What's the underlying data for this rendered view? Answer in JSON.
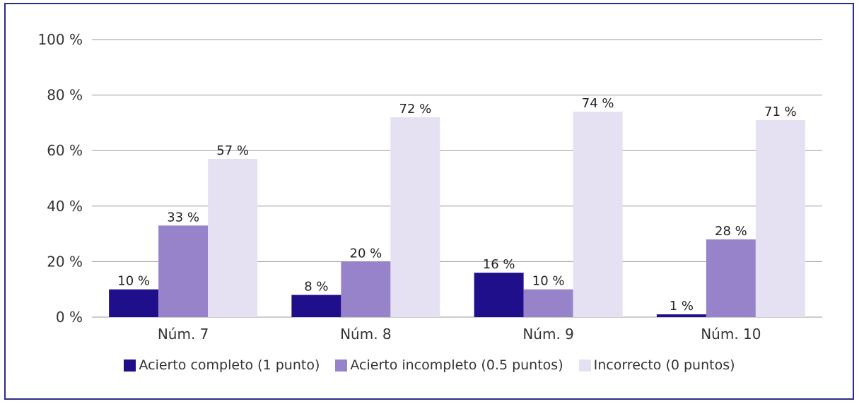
{
  "chart_data": {
    "type": "bar",
    "categories": [
      "Núm. 7",
      "Núm. 8",
      "Núm. 9",
      "Núm. 10"
    ],
    "series": [
      {
        "name": "Acierto completo (1 punto)",
        "values": [
          10,
          8,
          16,
          1
        ],
        "labels": [
          "10 %",
          "8 %",
          "16 %",
          "1 %"
        ],
        "color": "#1f0f8a"
      },
      {
        "name": "Acierto incompleto (0.5 puntos)",
        "values": [
          33,
          20,
          10,
          28
        ],
        "labels": [
          "33 %",
          "20 %",
          "10 %",
          "28 %"
        ],
        "color": "#9683c9"
      },
      {
        "name": "Incorrecto (0 puntos)",
        "values": [
          57,
          72,
          74,
          71
        ],
        "labels": [
          "57 %",
          "72 %",
          "74 %",
          "71 %"
        ],
        "color": "#e6e1f2"
      }
    ],
    "yticks": [
      "0 %",
      "20 %",
      "40 %",
      "60 %",
      "80 %",
      "100 %"
    ],
    "ylim": [
      0,
      100
    ],
    "grid": true,
    "legend_position": "bottom",
    "title": "",
    "xlabel": "",
    "ylabel": ""
  },
  "colors": {
    "border": "#2d2d86",
    "gridline": "#999999"
  }
}
